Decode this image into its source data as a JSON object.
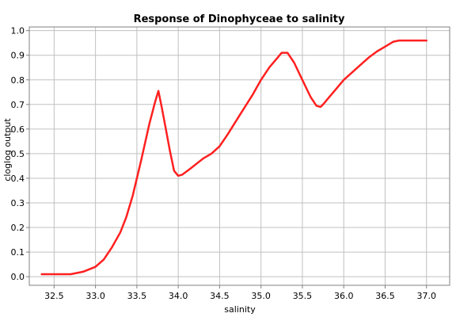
{
  "chart_data": {
    "type": "line",
    "title": "Response of Dinophyceae to salinity",
    "xlabel": "salinity",
    "ylabel": "cloglog output",
    "xlim": [
      32.2,
      37.28
    ],
    "ylim": [
      -0.035,
      1.015
    ],
    "x_ticks": [
      32.5,
      33.0,
      33.5,
      34.0,
      34.5,
      35.0,
      35.5,
      36.0,
      36.5,
      37.0
    ],
    "x_tick_labels": [
      "32.5",
      "33.0",
      "33.5",
      "34.0",
      "34.5",
      "35.0",
      "35.5",
      "36.0",
      "36.5",
      "37.0"
    ],
    "y_ticks": [
      0.0,
      0.1,
      0.2,
      0.3,
      0.4,
      0.5,
      0.6,
      0.7,
      0.8,
      0.9,
      1.0
    ],
    "y_tick_labels": [
      "0.0",
      "0.1",
      "0.2",
      "0.3",
      "0.4",
      "0.5",
      "0.6",
      "0.7",
      "0.8",
      "0.9",
      "1.0"
    ],
    "grid": true,
    "series": [
      {
        "color": "#ff2020",
        "x": [
          32.35,
          32.7,
          32.85,
          33.0,
          33.1,
          33.2,
          33.3,
          33.37,
          33.45,
          33.55,
          33.65,
          33.72,
          33.76,
          33.8,
          33.85,
          33.9,
          33.95,
          34.0,
          34.05,
          34.15,
          34.3,
          34.4,
          34.5,
          34.6,
          34.75,
          34.9,
          35.0,
          35.1,
          35.2,
          35.25,
          35.32,
          35.4,
          35.5,
          35.6,
          35.67,
          35.72,
          35.75,
          35.8,
          35.9,
          36.0,
          36.1,
          36.2,
          36.3,
          36.4,
          36.5,
          36.6,
          36.67,
          36.75,
          37.0
        ],
        "y": [
          0.01,
          0.01,
          0.02,
          0.04,
          0.07,
          0.12,
          0.18,
          0.24,
          0.33,
          0.47,
          0.62,
          0.71,
          0.755,
          0.69,
          0.6,
          0.51,
          0.43,
          0.41,
          0.415,
          0.44,
          0.48,
          0.5,
          0.53,
          0.58,
          0.66,
          0.74,
          0.8,
          0.85,
          0.89,
          0.91,
          0.91,
          0.87,
          0.8,
          0.73,
          0.695,
          0.69,
          0.7,
          0.72,
          0.76,
          0.8,
          0.83,
          0.86,
          0.89,
          0.915,
          0.935,
          0.955,
          0.96,
          0.96,
          0.96
        ]
      }
    ]
  }
}
